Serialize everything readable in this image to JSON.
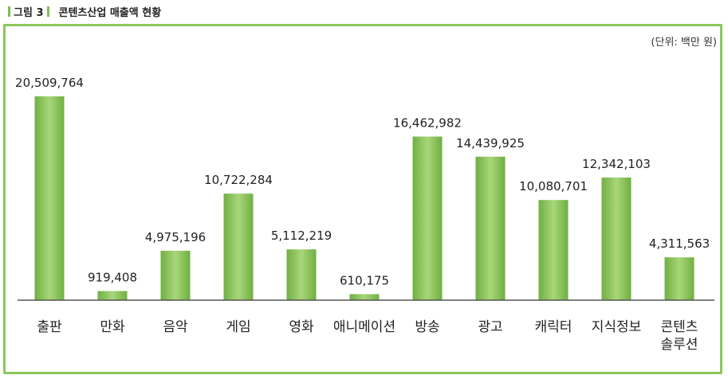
{
  "caption": {
    "label": "그림 3",
    "title": "콘텐츠산업 매출액 현황"
  },
  "unit_note": "(단위: 백만 원)",
  "colors": {
    "frame": "#8cc65c",
    "bar_light": "#a9d67a",
    "bar_dark": "#6fb042",
    "baseline": "#555555"
  },
  "chart_data": {
    "type": "bar",
    "title": "콘텐츠산업 매출액 현황",
    "unit": "(단위: 백만 원)",
    "categories": [
      [
        "출판"
      ],
      [
        "만화"
      ],
      [
        "음악"
      ],
      [
        "게임"
      ],
      [
        "영화"
      ],
      [
        "애니메이션"
      ],
      [
        "방송"
      ],
      [
        "광고"
      ],
      [
        "캐릭터"
      ],
      [
        "지식정보"
      ],
      [
        "콘텐츠",
        "솔루션"
      ]
    ],
    "values": [
      20509764,
      919408,
      4975196,
      10722284,
      5112219,
      610175,
      16462982,
      14439925,
      10080701,
      12342103,
      4311563
    ],
    "value_labels": [
      "20,509,764",
      "919,408",
      "4,975,196",
      "10,722,284",
      "5,112,219",
      "610,175",
      "16,462,982",
      "14,439,925",
      "10,080,701",
      "12,342,103",
      "4,311,563"
    ],
    "grid": false,
    "legend": "none"
  }
}
